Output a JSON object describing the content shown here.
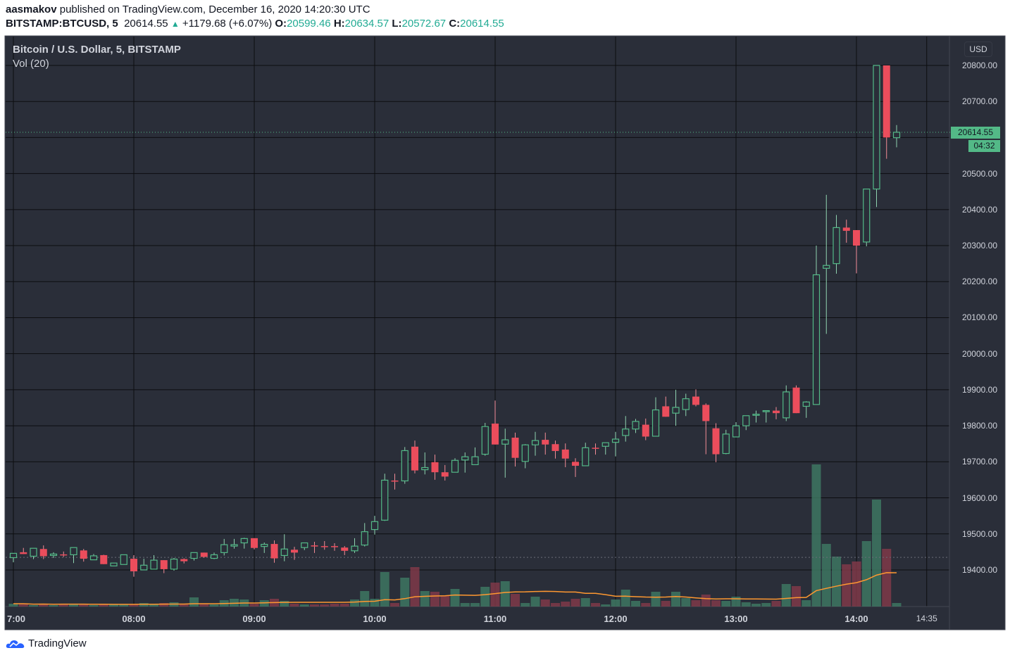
{
  "header": {
    "author": "aasmakov",
    "published": "published on TradingView.com, December 16, 2020 14:20:30 UTC",
    "symbol": "BITSTAMP:BTCUSD, 5",
    "last": "20614.55",
    "change": "+1179.68 (+6.07%)",
    "o_label": "O:",
    "o": "20599.46",
    "h_label": "H:",
    "h": "20634.57",
    "l_label": "L:",
    "l": "20572.67",
    "c_label": "C:",
    "c": "20614.55"
  },
  "legend": {
    "title": "Bitcoin / U.S. Dollar, 5, BITSTAMP",
    "volume": "Vol (20)"
  },
  "price_axis": {
    "currency": "USD",
    "labels": [
      "20800.00",
      "20700.00",
      "20500.00",
      "20400.00",
      "20300.00",
      "20200.00",
      "20100.00",
      "20000.00",
      "19900.00",
      "19800.00",
      "19700.00",
      "19600.00",
      "19500.00",
      "19400.00"
    ],
    "last_price": "20614.55",
    "countdown": "04:32"
  },
  "time_axis": {
    "labels": [
      "7:00",
      "08:00",
      "09:00",
      "10:00",
      "11:00",
      "12:00",
      "13:00",
      "14:00",
      "14:35"
    ]
  },
  "footer": {
    "brand": "TradingView"
  },
  "colors": {
    "background": "#2a2e39",
    "up": "#53b987",
    "down": "#eb4d5c",
    "volume_ma": "#ff9830",
    "grid": "#0c0d10"
  },
  "chart_data": {
    "type": "candlestick",
    "interval_minutes": 5,
    "ylim": [
      19330,
      20880
    ],
    "indicators": [
      {
        "name": "Vol (20)",
        "type": "volume",
        "ma_period": 20
      }
    ],
    "grid": true,
    "last_price_line": 20614.55,
    "columns": [
      "time",
      "open",
      "high",
      "low",
      "close",
      "volume"
    ],
    "candles": [
      [
        "07:00",
        19434,
        19446,
        19421,
        19446,
        4
      ],
      [
        "07:05",
        19449,
        19461,
        19444,
        19444,
        4
      ],
      [
        "07:10",
        19438,
        19460,
        19430,
        19460,
        2
      ],
      [
        "07:15",
        19458,
        19468,
        19430,
        19438,
        4
      ],
      [
        "07:20",
        19440,
        19449,
        19433,
        19444,
        2
      ],
      [
        "07:25",
        19443,
        19451,
        19436,
        19441,
        4
      ],
      [
        "07:30",
        19442,
        19462,
        19419,
        19462,
        4
      ],
      [
        "07:35",
        19454,
        19458,
        19423,
        19431,
        3
      ],
      [
        "07:40",
        19428,
        19444,
        19428,
        19439,
        2
      ],
      [
        "07:45",
        19441,
        19442,
        19416,
        19416,
        3
      ],
      [
        "07:50",
        19411,
        19419,
        19411,
        19419,
        3
      ],
      [
        "07:55",
        19415,
        19442,
        19415,
        19442,
        3
      ],
      [
        "08:00",
        19431,
        19441,
        19381,
        19396,
        3
      ],
      [
        "08:05",
        19400,
        19431,
        19400,
        19413,
        5
      ],
      [
        "08:10",
        19402,
        19441,
        19402,
        19427,
        3
      ],
      [
        "08:15",
        19427,
        19427,
        19391,
        19402,
        5
      ],
      [
        "08:20",
        19402,
        19433,
        19398,
        19430,
        6
      ],
      [
        "08:25",
        19430,
        19432,
        19418,
        19424,
        3
      ],
      [
        "08:30",
        19432,
        19448,
        19426,
        19448,
        13
      ],
      [
        "08:35",
        19448,
        19448,
        19434,
        19436,
        4
      ],
      [
        "08:40",
        19432,
        19448,
        19430,
        19442,
        3
      ],
      [
        "08:45",
        19448,
        19486,
        19440,
        19470,
        9
      ],
      [
        "08:50",
        19466,
        19486,
        19459,
        19470,
        11
      ],
      [
        "08:55",
        19475,
        19489,
        19459,
        19487,
        10
      ],
      [
        "09:00",
        19488,
        19488,
        19457,
        19461,
        4
      ],
      [
        "09:05",
        19465,
        19476,
        19447,
        19471,
        9
      ],
      [
        "09:10",
        19472,
        19482,
        19420,
        19432,
        11
      ],
      [
        "09:15",
        19440,
        19499,
        19424,
        19458,
        8
      ],
      [
        "09:20",
        19456,
        19464,
        19428,
        19448,
        4
      ],
      [
        "09:25",
        19462,
        19475,
        19455,
        19475,
        3
      ],
      [
        "09:30",
        19468,
        19478,
        19447,
        19465,
        3
      ],
      [
        "09:35",
        19466,
        19480,
        19456,
        19465,
        3
      ],
      [
        "09:40",
        19466,
        19474,
        19453,
        19463,
        4
      ],
      [
        "09:45",
        19462,
        19466,
        19441,
        19453,
        4
      ],
      [
        "09:50",
        19453,
        19488,
        19447,
        19466,
        10
      ],
      [
        "09:55",
        19469,
        19530,
        19465,
        19506,
        22
      ],
      [
        "10:00",
        19512,
        19550,
        19498,
        19534,
        11
      ],
      [
        "10:05",
        19538,
        19667,
        19536,
        19649,
        49
      ],
      [
        "10:10",
        19648,
        19667,
        19623,
        19645,
        5
      ],
      [
        "10:15",
        19647,
        19741,
        19639,
        19731,
        41
      ],
      [
        "10:20",
        19742,
        19759,
        19668,
        19676,
        56
      ],
      [
        "10:25",
        19678,
        19726,
        19665,
        19684,
        22
      ],
      [
        "10:30",
        19699,
        19720,
        19650,
        19671,
        21
      ],
      [
        "10:35",
        19671,
        19691,
        19648,
        19659,
        16
      ],
      [
        "10:40",
        19671,
        19710,
        19671,
        19704,
        25
      ],
      [
        "10:45",
        19705,
        19726,
        19670,
        19714,
        5
      ],
      [
        "10:50",
        19692,
        19740,
        19692,
        19714,
        5
      ],
      [
        "10:55",
        19721,
        19808,
        19717,
        19798,
        28
      ],
      [
        "11:00",
        19806,
        19870,
        19748,
        19748,
        34
      ],
      [
        "11:05",
        19749,
        19792,
        19656,
        19761,
        36
      ],
      [
        "11:10",
        19767,
        19781,
        19687,
        19711,
        18
      ],
      [
        "11:15",
        19701,
        19749,
        19682,
        19747,
        5
      ],
      [
        "11:20",
        19747,
        19783,
        19717,
        19759,
        14
      ],
      [
        "11:25",
        19761,
        19781,
        19720,
        19748,
        10
      ],
      [
        "11:30",
        19749,
        19759,
        19709,
        19730,
        5
      ],
      [
        "11:35",
        19734,
        19751,
        19685,
        19709,
        7
      ],
      [
        "11:40",
        19700,
        19710,
        19658,
        19689,
        11
      ],
      [
        "11:45",
        19689,
        19753,
        19689,
        19739,
        12
      ],
      [
        "11:50",
        19739,
        19751,
        19720,
        19736,
        5
      ],
      [
        "11:55",
        19743,
        19753,
        19720,
        19753,
        3
      ],
      [
        "12:00",
        19754,
        19783,
        19715,
        19763,
        10
      ],
      [
        "12:05",
        19773,
        19827,
        19756,
        19791,
        24
      ],
      [
        "12:10",
        19791,
        19819,
        19780,
        19812,
        8
      ],
      [
        "12:15",
        19803,
        19820,
        19760,
        19770,
        5
      ],
      [
        "12:20",
        19771,
        19879,
        19771,
        19844,
        21
      ],
      [
        "12:25",
        19854,
        19881,
        19825,
        19825,
        8
      ],
      [
        "12:30",
        19835,
        19900,
        19800,
        19851,
        21
      ],
      [
        "12:35",
        19845,
        19889,
        19827,
        19875,
        12
      ],
      [
        "12:40",
        19881,
        19901,
        19854,
        19858,
        9
      ],
      [
        "12:45",
        19858,
        19862,
        19721,
        19813,
        17
      ],
      [
        "12:50",
        19793,
        19807,
        19699,
        19721,
        9
      ],
      [
        "12:55",
        19723,
        19789,
        19721,
        19777,
        8
      ],
      [
        "13:00",
        19769,
        19810,
        19769,
        19800,
        14
      ],
      [
        "13:05",
        19800,
        19828,
        19788,
        19828,
        6
      ],
      [
        "13:10",
        19829,
        19842,
        19809,
        19832,
        4
      ],
      [
        "13:15",
        19840,
        19842,
        19809,
        19842,
        5
      ],
      [
        "13:20",
        19842,
        19852,
        19818,
        19835,
        8
      ],
      [
        "13:25",
        19822,
        19912,
        19813,
        19894,
        32
      ],
      [
        "13:30",
        19906,
        19912,
        19835,
        19835,
        29
      ],
      [
        "13:35",
        19854,
        19868,
        19822,
        19866,
        9
      ],
      [
        "13:40",
        19859,
        20300,
        19859,
        20219,
        202
      ],
      [
        "13:45",
        20237,
        20441,
        20055,
        20245,
        89
      ],
      [
        "13:50",
        20250,
        20385,
        20222,
        20350,
        71
      ],
      [
        "13:55",
        20350,
        20372,
        20308,
        20341,
        60
      ],
      [
        "14:00",
        20343,
        20343,
        20223,
        20300,
        64
      ],
      [
        "14:05",
        20310,
        20457,
        20298,
        20457,
        93
      ],
      [
        "14:10",
        20457,
        20800,
        20407,
        20800,
        152
      ],
      [
        "14:15",
        20800,
        20800,
        20541,
        20600,
        82
      ],
      [
        "14:20",
        20599.46,
        20634.57,
        20572.67,
        20614.55,
        5
      ]
    ]
  }
}
